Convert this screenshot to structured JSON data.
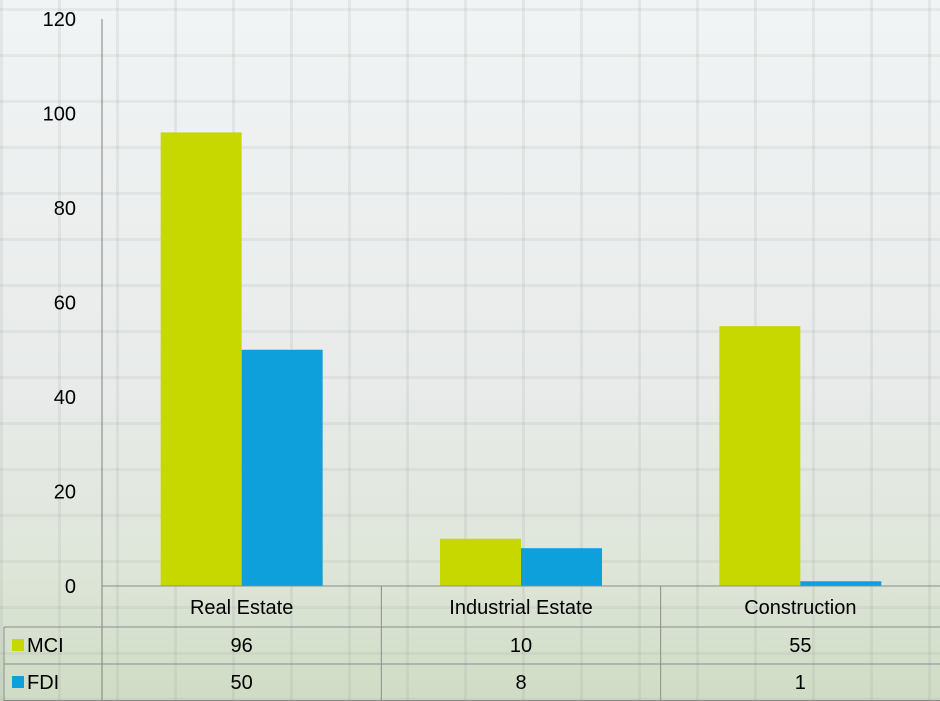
{
  "chart_data": {
    "type": "bar",
    "categories": [
      "Real Estate",
      "Industrial Estate",
      "Construction"
    ],
    "series": [
      {
        "name": "MCI",
        "values": [
          96,
          10,
          55
        ],
        "color": "#c6d800"
      },
      {
        "name": "FDI",
        "values": [
          50,
          8,
          1
        ],
        "color": "#0ea0da"
      }
    ],
    "ylim": [
      0,
      120
    ],
    "yticks": [
      0,
      20,
      40,
      60,
      80,
      100,
      120
    ],
    "title": "",
    "xlabel": "",
    "ylabel": "",
    "grid": false,
    "legend": "data-table"
  }
}
